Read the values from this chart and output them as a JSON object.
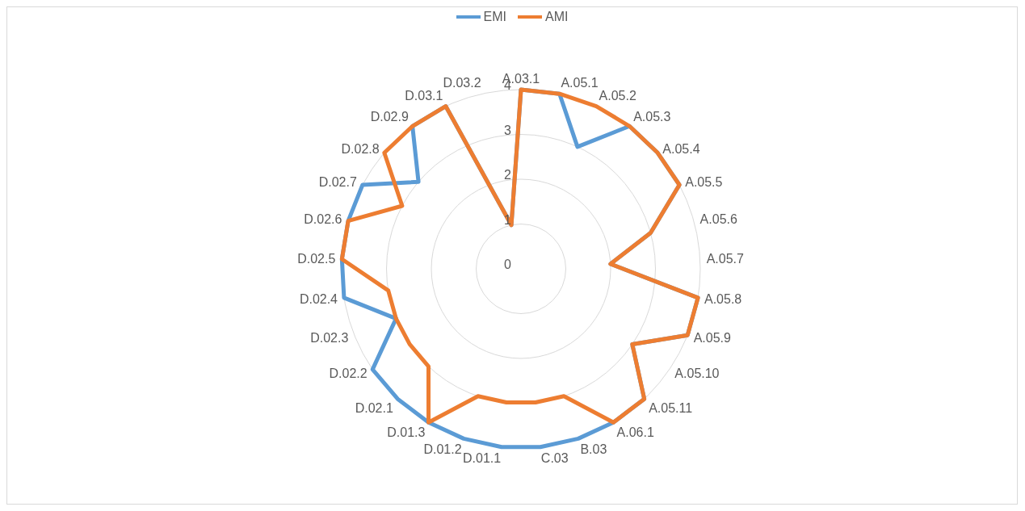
{
  "chart_data": {
    "type": "radar",
    "categories": [
      "A.03.1",
      "A.05.1",
      "A.05.2",
      "A.05.3",
      "A.05.4",
      "A.05.5",
      "A.05.6",
      "A.05.7",
      "A.05.8",
      "A.05.9",
      "A.05.10",
      "A.05.11",
      "A.06.1",
      "B.03",
      "C.03",
      "D.01.1",
      "D.01.2",
      "D.01.3",
      "D.02.1",
      "D.02.2",
      "D.02.3",
      "D.02.4",
      "D.02.5",
      "D.02.6",
      "D.02.7",
      "D.02.8",
      "D.02.9",
      "D.03.1",
      "D.03.2"
    ],
    "series": [
      {
        "name": "EMI",
        "color": "#5b9bd5",
        "values": [
          4,
          4,
          3,
          4,
          4,
          4,
          3,
          2,
          4,
          4,
          3,
          4,
          4,
          4,
          4,
          4,
          4,
          4,
          4,
          4,
          3,
          4,
          4,
          4,
          4,
          3,
          4,
          4,
          1
        ]
      },
      {
        "name": "AMI",
        "color": "#ed7d31",
        "values": [
          4,
          4,
          4,
          4,
          4,
          4,
          3,
          2,
          4,
          4,
          3,
          4,
          4,
          3,
          3,
          3,
          3,
          4,
          3,
          3,
          3,
          3,
          4,
          4,
          3,
          4,
          4,
          4,
          1
        ]
      }
    ],
    "ylim": [
      0,
      4
    ],
    "yticks": [
      0,
      1,
      2,
      3,
      4
    ],
    "grid": true,
    "legend": "top",
    "marker": "none"
  }
}
